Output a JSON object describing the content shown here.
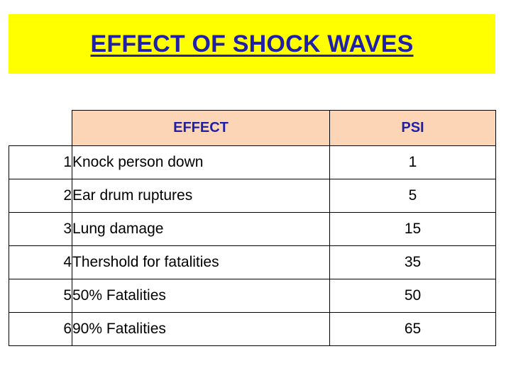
{
  "title": "EFFECT OF SHOCK WAVES",
  "colors": {
    "title_background": "#ffff00",
    "title_text": "#1f1fa8",
    "header_background": "#fbd5b5",
    "header_text": "#1f1fa8"
  },
  "table": {
    "headers": {
      "effect": "EFFECT",
      "psi": "PSI"
    },
    "rows": [
      {
        "num": "1",
        "effect": "Knock person down",
        "psi": "1"
      },
      {
        "num": "2",
        "effect": "Ear drum ruptures",
        "psi": "5"
      },
      {
        "num": "3",
        "effect": "Lung damage",
        "psi": "15"
      },
      {
        "num": "4",
        "effect": "Thershold for fatalities",
        "psi": "35"
      },
      {
        "num": "5",
        "effect": "50% Fatalities",
        "psi": "50"
      },
      {
        "num": "6",
        "effect": "90% Fatalities",
        "psi": "65"
      }
    ]
  }
}
